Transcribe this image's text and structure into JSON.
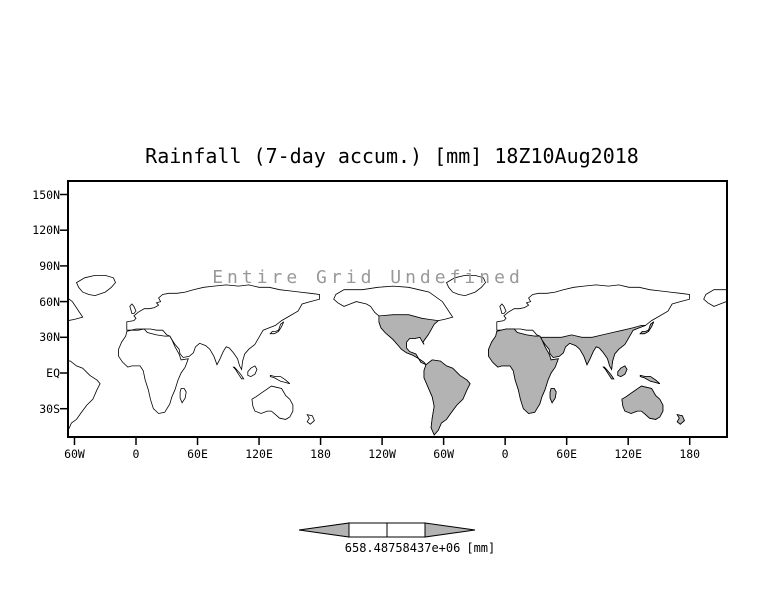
{
  "title": "Rainfall (7-day accum.) [mm] 18Z10Aug2018",
  "annotation": "Entire Grid Undefined",
  "axes": {
    "y_tick_labels": [
      "150N",
      "120N",
      "90N",
      "60N",
      "30N",
      "EQ",
      "30S"
    ],
    "x_tick_labels": [
      "60W",
      "0",
      "60E",
      "120E",
      "180",
      "120W",
      "60W",
      "0",
      "60E",
      "120E",
      "180"
    ]
  },
  "colorbar": {
    "value_label": "658.48758437e+06",
    "unit_label": "[mm]"
  },
  "colors": {
    "land_fill": "#b3b3b3",
    "coastline": "#000000",
    "annotation_text": "#999999",
    "frame": "#000000"
  },
  "chart_data": {
    "type": "map",
    "title": "Rainfall (7-day accum.) [mm] 18Z10Aug2018",
    "status_annotation": "Entire Grid Undefined",
    "x_tick_labels": [
      "60W",
      "0",
      "60E",
      "120E",
      "180",
      "120W",
      "60W",
      "0",
      "60E",
      "120E",
      "180"
    ],
    "y_tick_labels": [
      "150N",
      "120N",
      "90N",
      "60N",
      "30N",
      "EQ",
      "30S"
    ],
    "colorbar_label": "658.48758437e+06 [mm]",
    "series": [],
    "notes": "Rainfall field is undefined (no data values plotted); only world coastline basemap with gray land fill on the central repeat, axis tick labels, and a gray double-arrow colorbar are shown."
  }
}
